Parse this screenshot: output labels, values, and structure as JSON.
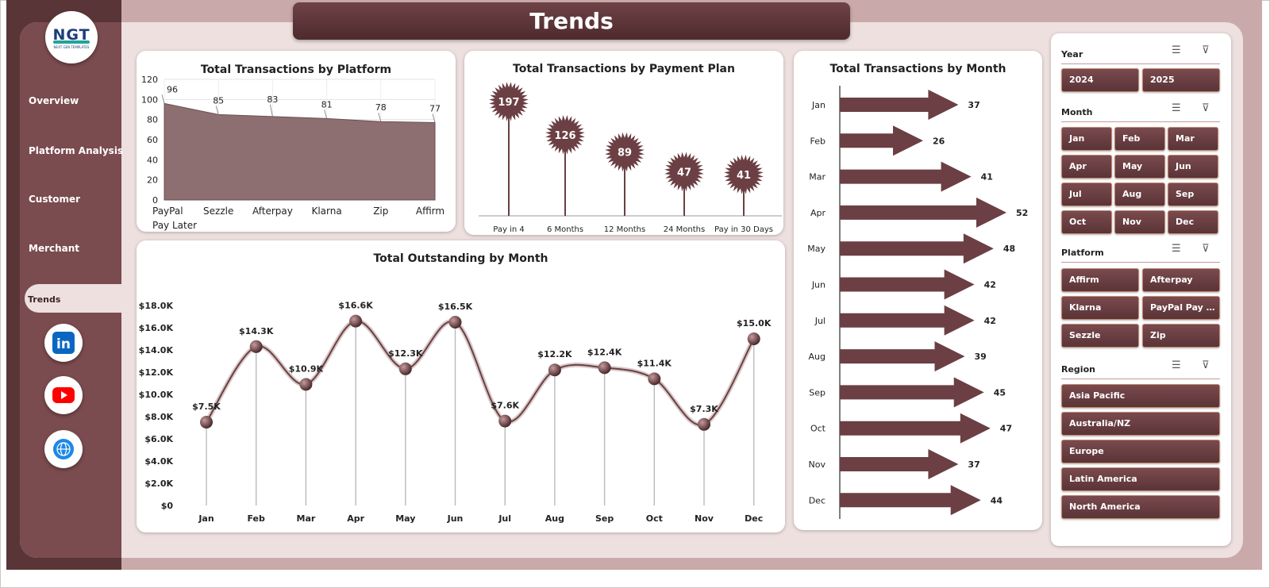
{
  "page": {
    "title": "Trends"
  },
  "logo": {
    "mark": "NGT",
    "sub": "NEXT GEN TEMPLATES"
  },
  "sidebar": {
    "items": [
      {
        "label": "Overview"
      },
      {
        "label": "Platform Analysis"
      },
      {
        "label": "Customer"
      },
      {
        "label": "Merchant"
      },
      {
        "label": "Trends",
        "active": true
      }
    ],
    "social": [
      {
        "icon": "linkedin-icon",
        "label": "in",
        "color": "#0a66c2"
      },
      {
        "icon": "youtube-icon",
        "color": "#ff0000"
      },
      {
        "icon": "globe-icon",
        "color": "#1e88e5"
      }
    ]
  },
  "colors": {
    "accent": "#6b3f43",
    "fill": "#8e6f71",
    "line": "#6b3f43",
    "bg": "#ede0df"
  },
  "charts": {
    "platform": {
      "title": "Total Transactions by Platform",
      "type": "area",
      "categories": [
        [
          "PayPal",
          "Pay Later"
        ],
        [
          "Sezzle"
        ],
        [
          "Afterpay"
        ],
        [
          "Klarna"
        ],
        [
          "Zip"
        ],
        [
          "Affirm"
        ]
      ],
      "values": [
        96,
        85,
        83,
        81,
        78,
        77
      ],
      "ylim": [
        0,
        120
      ],
      "yticks": [
        "0",
        "20",
        "40",
        "60",
        "80",
        "100",
        "120"
      ]
    },
    "payment_plan": {
      "title": "Total Transactions by Payment Plan",
      "type": "lollipop",
      "categories": [
        "Pay in 4",
        "6 Months",
        "12 Months",
        "24 Months",
        "Pay in 30 Days"
      ],
      "values": [
        197,
        126,
        89,
        47,
        41
      ]
    },
    "outstanding": {
      "title": "Total Outstanding by Month",
      "type": "line",
      "categories": [
        "Jan",
        "Feb",
        "Mar",
        "Apr",
        "May",
        "Jun",
        "Jul",
        "Aug",
        "Sep",
        "Oct",
        "Nov",
        "Dec"
      ],
      "values": [
        7.5,
        14.3,
        10.9,
        16.6,
        12.3,
        16.5,
        7.6,
        12.2,
        12.4,
        11.4,
        7.3,
        15.0
      ],
      "labels": [
        "$7.5K",
        "$14.3K",
        "$10.9K",
        "$16.6K",
        "$12.3K",
        "$16.5K",
        "$7.6K",
        "$12.2K",
        "$12.4K",
        "$11.4K",
        "$7.3K",
        "$15.0K"
      ],
      "ylim": [
        0,
        18
      ],
      "yticks": [
        "$0",
        "$2.0K",
        "$4.0K",
        "$6.0K",
        "$8.0K",
        "$10.0K",
        "$12.0K",
        "$14.0K",
        "$16.0K",
        "$18.0K"
      ]
    },
    "monthly": {
      "title": "Total Transactions by Month",
      "type": "bar",
      "categories": [
        "Jan",
        "Feb",
        "Mar",
        "Apr",
        "May",
        "Jun",
        "Jul",
        "Aug",
        "Sep",
        "Oct",
        "Nov",
        "Dec"
      ],
      "values": [
        37,
        26,
        41,
        52,
        48,
        42,
        42,
        39,
        45,
        47,
        37,
        44
      ]
    }
  },
  "filters": {
    "year": {
      "title": "Year",
      "options": [
        "2024",
        "2025"
      ]
    },
    "month": {
      "title": "Month",
      "options": [
        "Jan",
        "Feb",
        "Mar",
        "Apr",
        "May",
        "Jun",
        "Jul",
        "Aug",
        "Sep",
        "Oct",
        "Nov",
        "Dec"
      ]
    },
    "platform": {
      "title": "Platform",
      "options": [
        "Affirm",
        "Afterpay",
        "Klarna",
        "PayPal Pay La...",
        "Sezzle",
        "Zip"
      ]
    },
    "region": {
      "title": "Region",
      "options": [
        "Asia Pacific",
        "Australia/NZ",
        "Europe",
        "Latin America",
        "North America"
      ]
    }
  }
}
